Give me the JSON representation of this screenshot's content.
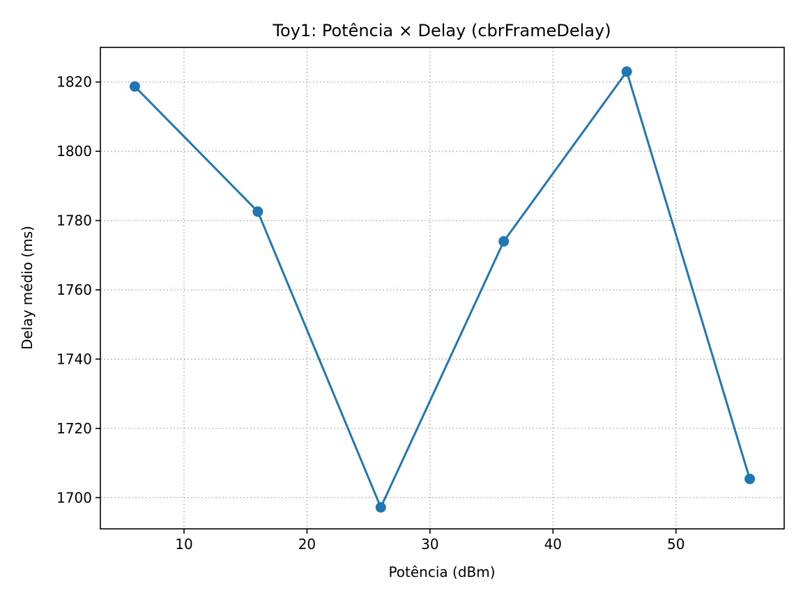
{
  "chart_data": {
    "type": "line",
    "title": "Toy1: Potência × Delay (cbrFrameDelay)",
    "xlabel": "Potência (dBm)",
    "ylabel": "Delay médio (ms)",
    "xlim": [
      3.2,
      58.8
    ],
    "ylim": [
      1691,
      1830
    ],
    "xticks": [
      10,
      20,
      30,
      40,
      50
    ],
    "yticks": [
      1700,
      1720,
      1740,
      1760,
      1780,
      1800,
      1820
    ],
    "grid": true,
    "markers": "circle",
    "series": [
      {
        "color": "#1f77b4",
        "x": [
          6,
          16,
          26,
          36,
          46,
          56
        ],
        "y": [
          1818.7,
          1782.6,
          1697.2,
          1774.0,
          1823.0,
          1705.4
        ]
      }
    ]
  }
}
